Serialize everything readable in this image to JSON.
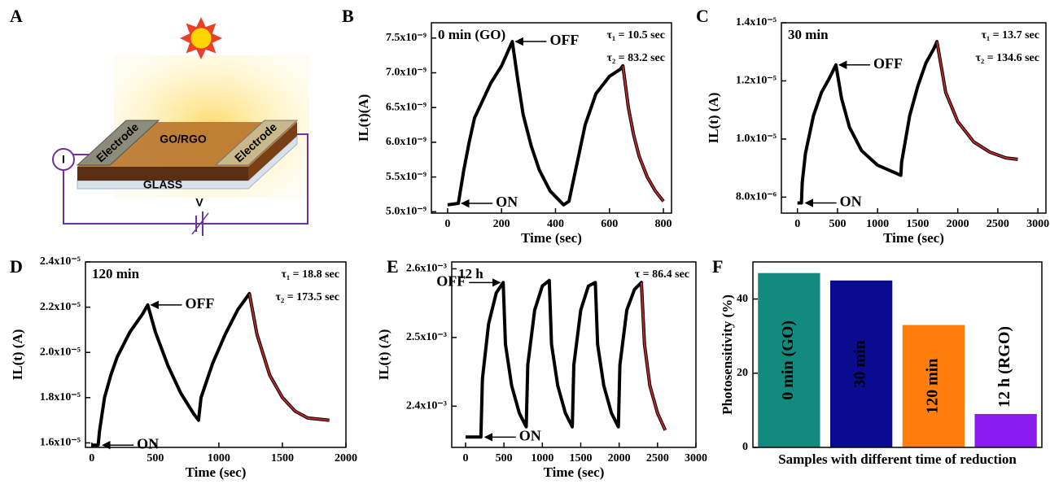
{
  "diagram": {
    "panel": "A",
    "layer": "GO/RGO",
    "electrode_left": "Electrode",
    "electrode_right": "Electrode",
    "substrate": "GLASS",
    "current": "I",
    "voltage": "V"
  },
  "chart_data": [
    {
      "type": "line",
      "panel": "B",
      "title": "0 min (GO)",
      "title_color": "#2e75b6",
      "notes": [
        "τ₁ = 10.5 sec",
        "τ₂ = 83.2 sec"
      ],
      "xlabel": "Time (sec)",
      "ylabel": "IL(t)(A)",
      "xlim": [
        -60,
        830
      ],
      "ylim": [
        4.98e-09,
        7.72e-09
      ],
      "xticks": [
        0,
        200,
        400,
        600,
        800
      ],
      "yticks": [
        {
          "value": 5e-09,
          "label": "5.0x10⁻⁹"
        },
        {
          "value": 5.5e-09,
          "label": "5.5x10⁻⁹"
        },
        {
          "value": 6e-09,
          "label": "6.0x10⁻⁹"
        },
        {
          "value": 6.5e-09,
          "label": "6.5x10⁻⁹"
        },
        {
          "value": 7e-09,
          "label": "7.0x10⁻⁹"
        },
        {
          "value": 7.5e-09,
          "label": "7.5x10⁻⁹"
        }
      ],
      "series": [
        {
          "color": "#000000",
          "x": [
            0,
            40,
            60,
            80,
            100,
            130,
            160,
            200,
            240,
            260,
            280,
            310,
            340,
            380,
            430,
            450,
            480,
            510,
            550,
            600,
            640,
            650,
            670,
            690,
            710,
            740,
            770,
            800
          ],
          "values": [
            5.1e-09,
            5.12e-09,
            5.6e-09,
            6e-09,
            6.35e-09,
            6.6e-09,
            6.85e-09,
            7.1e-09,
            7.45e-09,
            6.9e-09,
            6.4e-09,
            5.95e-09,
            5.6e-09,
            5.3e-09,
            5.1e-09,
            5.15e-09,
            5.7e-09,
            6.25e-09,
            6.7e-09,
            6.95e-09,
            7.05e-09,
            7.1e-09,
            6.5e-09,
            6.1e-09,
            5.8e-09,
            5.5e-09,
            5.3e-09,
            5.15e-09
          ]
        },
        {
          "color": "#c0282a",
          "x": [
            650,
            670,
            690,
            710,
            740,
            770,
            800
          ],
          "values": [
            7.1e-09,
            6.5e-09,
            6.1e-09,
            5.8e-09,
            5.5e-09,
            5.3e-09,
            5.15e-09
          ]
        }
      ],
      "annotations": [
        {
          "text": "OFF",
          "x": 240,
          "y": 7.45e-09,
          "side": "right"
        },
        {
          "text": "ON",
          "x": 40,
          "y": 5.12e-09,
          "side": "right"
        }
      ]
    },
    {
      "type": "line",
      "panel": "C",
      "title": "30 min",
      "title_color": "#1f2a6b",
      "notes": [
        "τ₁ = 13.7 sec",
        "τ₂ = 134.6 sec"
      ],
      "xlabel": "Time (sec)",
      "ylabel": "IL(t) (A)",
      "xlim": [
        -200,
        3100
      ],
      "ylim": [
        7.45e-06,
        1.4e-05
      ],
      "xticks": [
        0,
        500,
        1000,
        1500,
        2000,
        2500,
        3000
      ],
      "yticks": [
        {
          "value": 8e-06,
          "label": "8.0x10⁻⁶"
        },
        {
          "value": 1e-05,
          "label": "1.0x10⁻⁵"
        },
        {
          "value": 1.2e-05,
          "label": "1.2x10⁻⁵"
        },
        {
          "value": 1.4e-05,
          "label": "1.4x10⁻⁵"
        }
      ],
      "series": [
        {
          "color": "#000000",
          "x": [
            0,
            50,
            60,
            100,
            200,
            300,
            400,
            480,
            550,
            650,
            800,
            1000,
            1250,
            1290,
            1300,
            1400,
            1500,
            1600,
            1700,
            1740,
            1850,
            2000,
            2200,
            2400,
            2600,
            2750
          ],
          "values": [
            7.8e-06,
            7.8e-06,
            8.5e-06,
            9.5e-06,
            1.08e-05,
            1.16e-05,
            1.21e-05,
            1.255e-05,
            1.14e-05,
            1.04e-05,
            9.6e-06,
            9.1e-06,
            8.8e-06,
            8.75e-06,
            9.2e-06,
            1.08e-05,
            1.18e-05,
            1.26e-05,
            1.31e-05,
            1.335e-05,
            1.16e-05,
            1.06e-05,
            9.9e-06,
            9.55e-06,
            9.35e-06,
            9.3e-06
          ]
        },
        {
          "color": "#c0282a",
          "x": [
            1740,
            1850,
            2000,
            2200,
            2400,
            2600,
            2750
          ],
          "values": [
            1.335e-05,
            1.16e-05,
            1.06e-05,
            9.9e-06,
            9.55e-06,
            9.35e-06,
            9.3e-06
          ]
        }
      ],
      "annotations": [
        {
          "text": "OFF",
          "x": 480,
          "y": 1.255e-05,
          "side": "right"
        },
        {
          "text": "ON",
          "x": 60,
          "y": 7.8e-06,
          "side": "right"
        }
      ]
    },
    {
      "type": "line",
      "panel": "D",
      "title": "120 min",
      "title_color": "#f28c1c",
      "notes": [
        "τ₁ = 18.8 sec",
        "τ₂ = 173.5 sec"
      ],
      "xlabel": "Time (sec)",
      "ylabel": "IL(t) (A)",
      "xlim": [
        -50,
        2000
      ],
      "ylim": [
        1.58e-05,
        2.4e-05
      ],
      "xticks": [
        0,
        500,
        1000,
        1500,
        2000
      ],
      "yticks": [
        {
          "value": 1.6e-05,
          "label": "1.6x10⁻⁵"
        },
        {
          "value": 1.8e-05,
          "label": "1.8x10⁻⁵"
        },
        {
          "value": 2e-05,
          "label": "2.0x10⁻⁵"
        },
        {
          "value": 2.2e-05,
          "label": "2.2x10⁻⁵"
        },
        {
          "value": 2.4e-05,
          "label": "2.4x10⁻⁵"
        }
      ],
      "series": [
        {
          "color": "#000000",
          "x": [
            0,
            50,
            60,
            100,
            150,
            200,
            300,
            400,
            440,
            500,
            600,
            700,
            800,
            840,
            860,
            950,
            1050,
            1150,
            1240,
            1300,
            1400,
            1500,
            1600,
            1700,
            1870
          ],
          "values": [
            1.59e-05,
            1.59e-05,
            1.65e-05,
            1.8e-05,
            1.9e-05,
            1.98e-05,
            2.09e-05,
            2.17e-05,
            2.21e-05,
            2.09e-05,
            1.94e-05,
            1.82e-05,
            1.73e-05,
            1.7e-05,
            1.8e-05,
            1.95e-05,
            2.08e-05,
            2.19e-05,
            2.26e-05,
            2.08e-05,
            1.9e-05,
            1.8e-05,
            1.74e-05,
            1.71e-05,
            1.7e-05
          ]
        },
        {
          "color": "#c0282a",
          "x": [
            1240,
            1300,
            1400,
            1500,
            1600,
            1700,
            1870
          ],
          "values": [
            2.26e-05,
            2.08e-05,
            1.9e-05,
            1.8e-05,
            1.74e-05,
            1.71e-05,
            1.7e-05
          ]
        }
      ],
      "annotations": [
        {
          "text": "OFF",
          "x": 440,
          "y": 2.21e-05,
          "side": "right"
        },
        {
          "text": "ON",
          "x": 60,
          "y": 1.59e-05,
          "side": "right"
        }
      ]
    },
    {
      "type": "line",
      "panel": "E",
      "title": "12 h",
      "title_color": "#7030a0",
      "notes": [
        "τ = 86.4 sec"
      ],
      "xlabel": "Time (sec)",
      "ylabel": "IL(t) (A)",
      "xlim": [
        -180,
        3000
      ],
      "ylim": [
        0.00234,
        0.00261
      ],
      "xticks": [
        0,
        500,
        1000,
        1500,
        2000,
        2500,
        3000
      ],
      "yticks": [
        {
          "value": 0.0024,
          "label": "2.4x10⁻³"
        },
        {
          "value": 0.0025,
          "label": "2.5x10⁻³"
        },
        {
          "value": 0.0026,
          "label": "2.6x10⁻³"
        }
      ],
      "series": [
        {
          "color": "#000000",
          "x": [
            0,
            200,
            220,
            300,
            400,
            490,
            520,
            600,
            700,
            790,
            810,
            900,
            1000,
            1090,
            1120,
            1200,
            1300,
            1390,
            1410,
            1500,
            1600,
            1690,
            1720,
            1800,
            1900,
            1990,
            2010,
            2100,
            2200,
            2290,
            2330,
            2400,
            2500,
            2600
          ],
          "values": [
            0.002355,
            0.002355,
            0.00244,
            0.00252,
            0.002565,
            0.00258,
            0.00249,
            0.00243,
            0.00239,
            0.00237,
            0.00246,
            0.00254,
            0.002575,
            0.002583,
            0.00249,
            0.00243,
            0.00239,
            0.00237,
            0.00246,
            0.00254,
            0.002575,
            0.00258,
            0.00249,
            0.00243,
            0.00239,
            0.00237,
            0.00246,
            0.00254,
            0.00257,
            0.00258,
            0.00249,
            0.00243,
            0.00239,
            0.002365
          ]
        },
        {
          "color": "#c0282a",
          "x": [
            2290,
            2330,
            2400,
            2500,
            2600
          ],
          "values": [
            0.00258,
            0.00249,
            0.00243,
            0.00239,
            0.002365
          ]
        }
      ],
      "annotations": [
        {
          "text": "OFF",
          "x": 490,
          "y": 0.00258,
          "side": "left"
        },
        {
          "text": "ON",
          "x": 210,
          "y": 0.002355,
          "side": "right"
        }
      ]
    },
    {
      "type": "bar",
      "panel": "F",
      "xlabel": "Samples with different time of reduction",
      "ylabel": "Photosensitivity (%)",
      "categories": [
        "0 min (GO)",
        "30 min",
        "120 min",
        "12 h (RGO)"
      ],
      "values": [
        47,
        45,
        33,
        9
      ],
      "colors": [
        "#138a7e",
        "#0b0b8f",
        "#ff7f0e",
        "#8b1cf0"
      ],
      "label_colors": [
        "#e8e83a",
        "#e8e83a",
        "#e8e83a",
        "#8b1cf0"
      ],
      "ylim": [
        0,
        50
      ],
      "yticks": [
        0,
        20,
        40
      ]
    }
  ]
}
